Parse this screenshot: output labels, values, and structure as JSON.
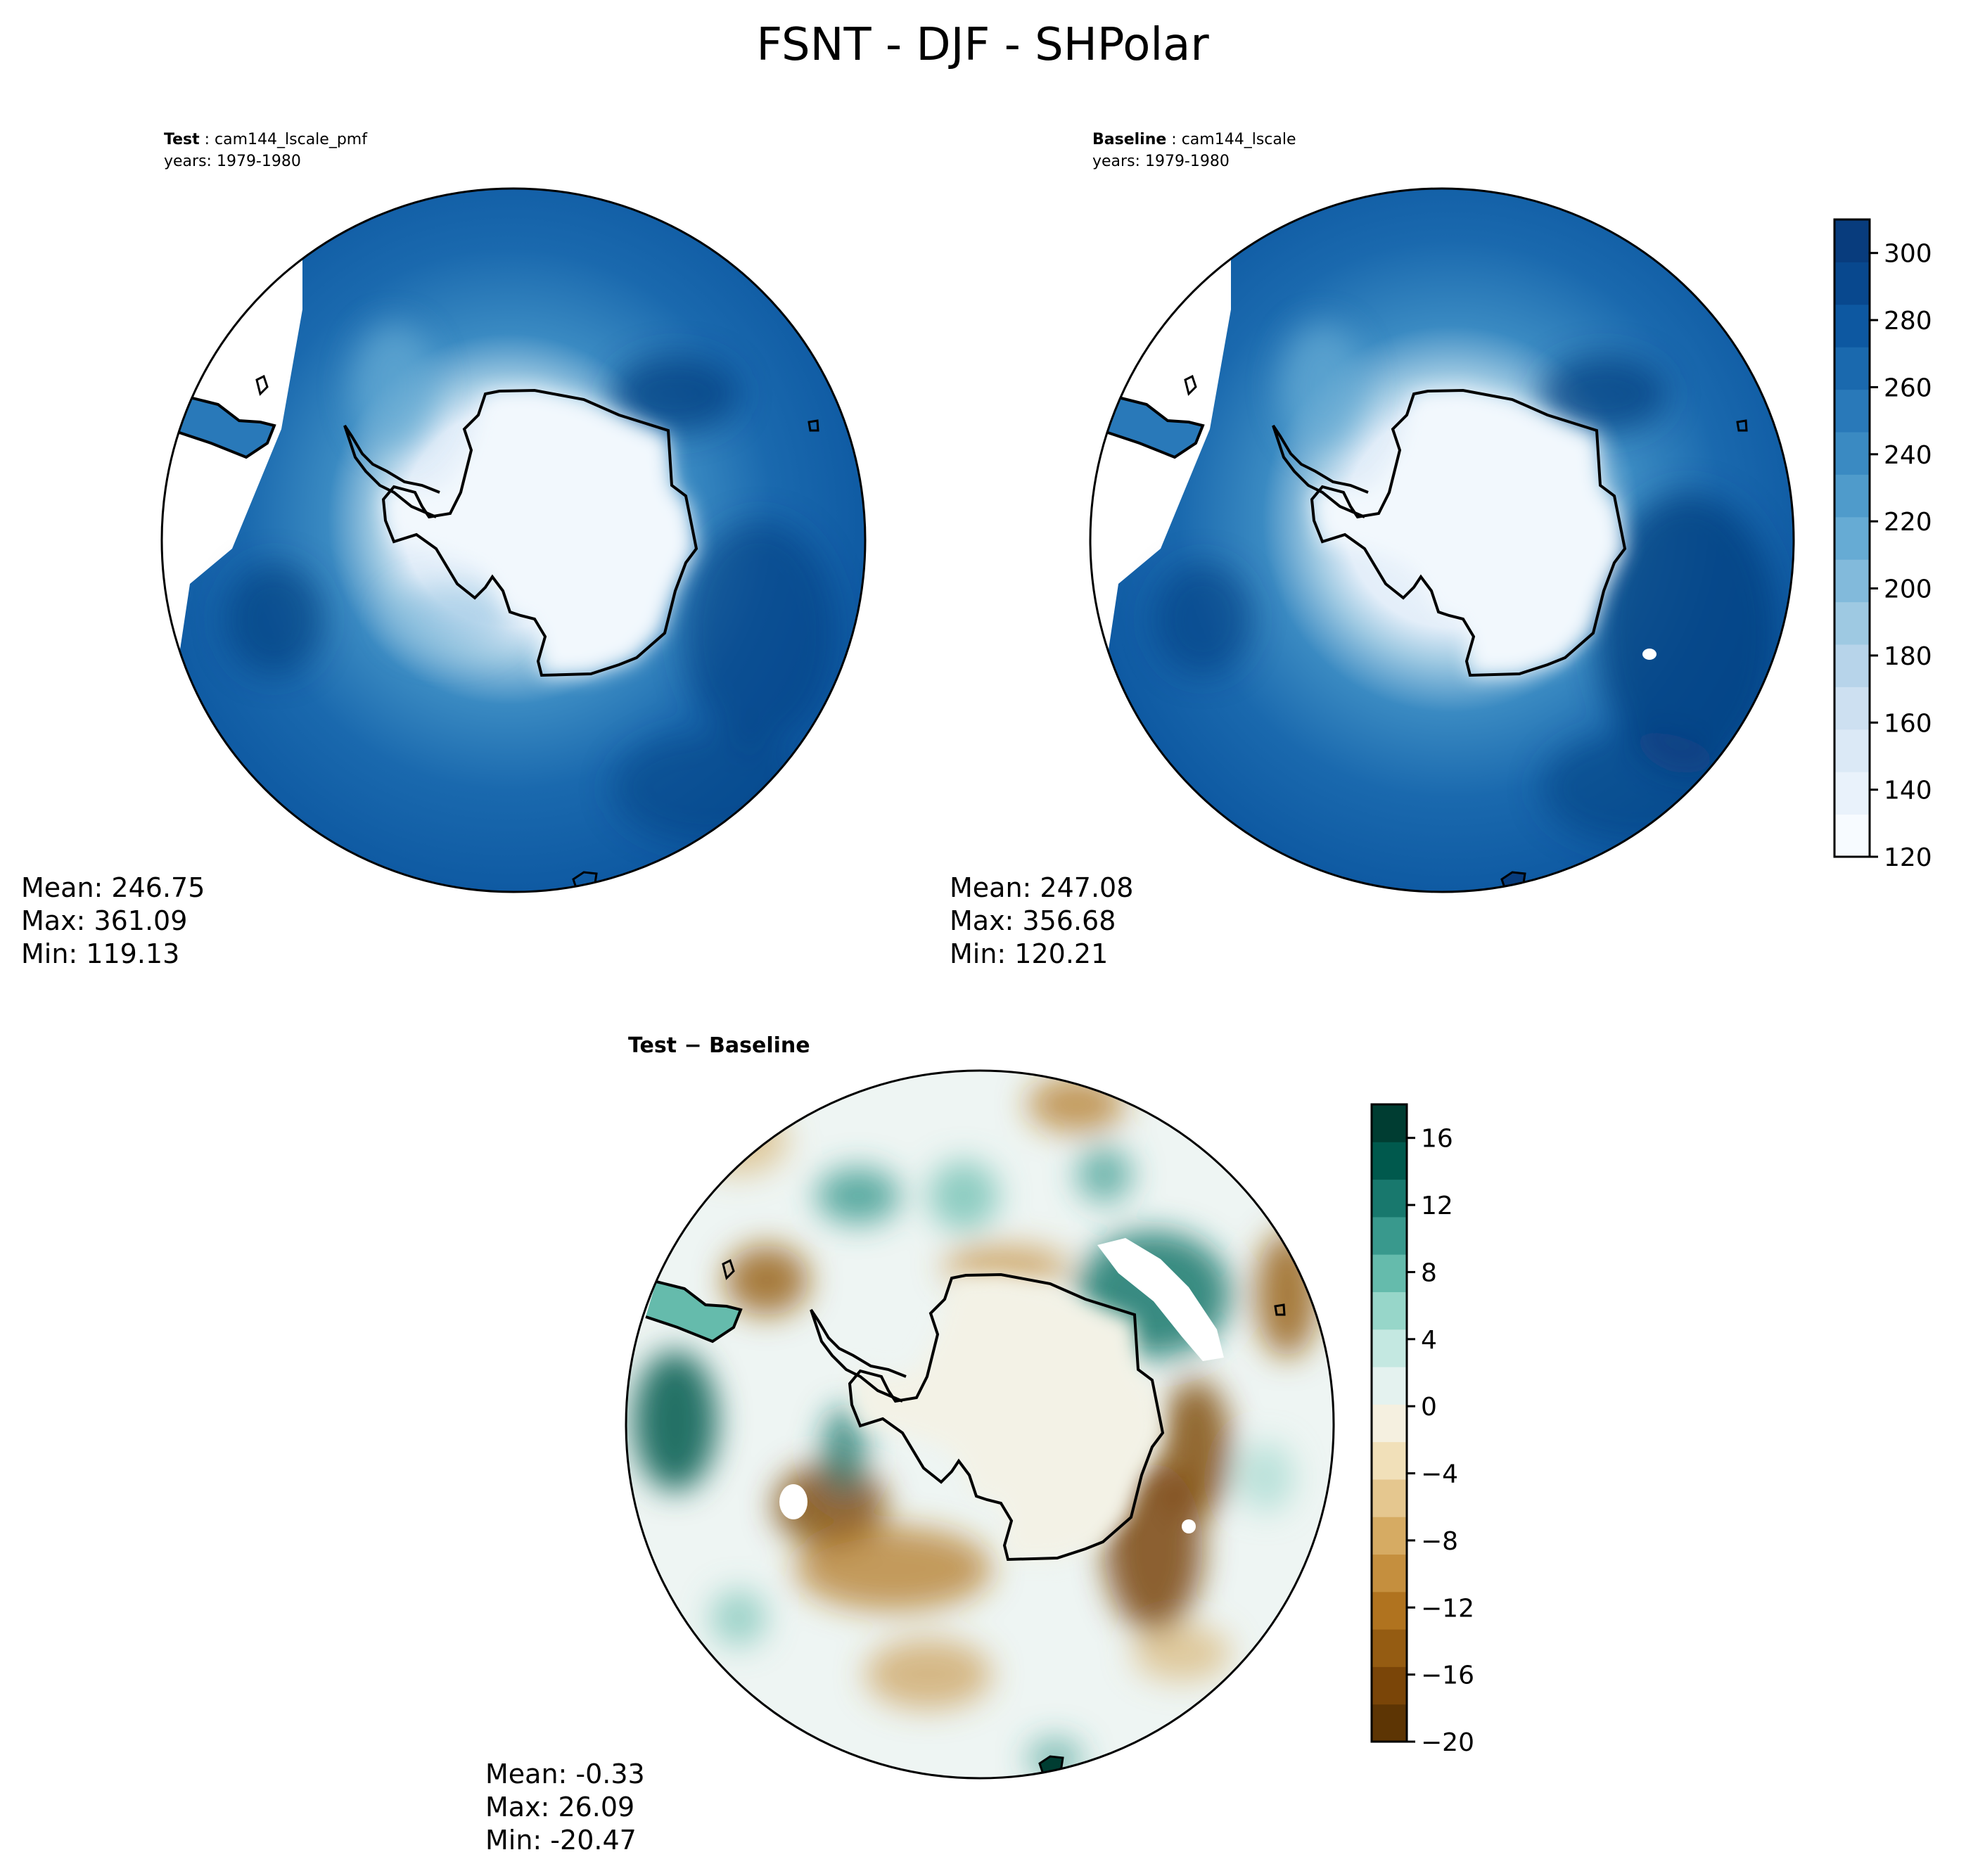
{
  "figure": {
    "title": "FSNT - DJF - SHPolar"
  },
  "panels": [
    {
      "id": "test",
      "label": "Test",
      "case": "cam144_lscale_pmf",
      "years": "years: 1979-1980",
      "stats": {
        "mean": "Mean: 246.75",
        "max": "Max: 361.09",
        "min": "Min: 119.13"
      }
    },
    {
      "id": "baseline",
      "label": "Baseline",
      "case": "cam144_lscale",
      "years": "years: 1979-1980",
      "stats": {
        "mean": "Mean: 247.08",
        "max": "Max: 356.68",
        "min": "Min: 120.21"
      }
    },
    {
      "id": "diff",
      "label": "Test − Baseline",
      "stats": {
        "mean": "Mean: -0.33",
        "max": "Max: 26.09",
        "min": "Min: -20.47"
      }
    }
  ],
  "colorbars": {
    "main": {
      "range": [
        120,
        310
      ],
      "ticks": [
        "300",
        "280",
        "260",
        "240",
        "220",
        "200",
        "180",
        "160",
        "140",
        "120"
      ],
      "tick_values": [
        300,
        280,
        260,
        240,
        220,
        200,
        180,
        160,
        140,
        120
      ],
      "colors": [
        "#f7fbff",
        "#e9f2fb",
        "#dbe9f6",
        "#cde0f1",
        "#b7d4ea",
        "#9ec9e2",
        "#82badb",
        "#66abd4",
        "#4f9bcb",
        "#3a8ac2",
        "#2979b9",
        "#1a69ae",
        "#0d58a1",
        "#08488e",
        "#083c7d"
      ]
    },
    "diff": {
      "range": [
        -20,
        18
      ],
      "ticks": [
        "16",
        "12",
        "8",
        "4",
        "0",
        "−4",
        "−8",
        "−12",
        "−16",
        "−20"
      ],
      "tick_values": [
        16,
        12,
        8,
        4,
        0,
        -4,
        -8,
        -12,
        -16,
        -20
      ],
      "colors": [
        "#5d3504",
        "#7a4508",
        "#955c12",
        "#b0731f",
        "#c58f3e",
        "#d6ab63",
        "#e5c78f",
        "#f1e0b9",
        "#f5f0e0",
        "#e4f2ef",
        "#c4e8e1",
        "#97d6c9",
        "#65bbac",
        "#39998d",
        "#18786d",
        "#00594d",
        "#003d32"
      ]
    }
  }
}
